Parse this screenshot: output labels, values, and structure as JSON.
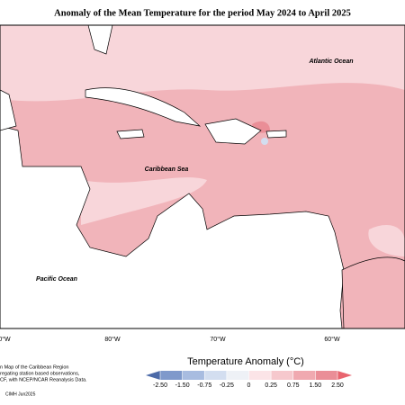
{
  "title": "Anomaly of the Mean Temperature for the period May 2024 to April 2025",
  "ocean_labels": {
    "atlantic": "Atlantic Ocean",
    "caribbean": "Caribbean Sea",
    "pacific": "Pacific Ocean"
  },
  "longitudes": [
    "0°W",
    "80°W",
    "70°W",
    "60°W"
  ],
  "legend": {
    "title": "Temperature Anomaly (°C)",
    "ticks": [
      {
        "value": -2.5,
        "label": "-2.50"
      },
      {
        "value": -1.5,
        "label": "-1.50"
      },
      {
        "value": -0.75,
        "label": "-0.75"
      },
      {
        "value": -0.25,
        "label": "-0.25"
      },
      0,
      {
        "value": 0.25,
        "label": "0.25"
      },
      {
        "value": 0.75,
        "label": "0.75"
      },
      {
        "value": 1.5,
        "label": "1.50"
      },
      {
        "value": 2.5,
        "label": "2.50"
      }
    ],
    "colors": [
      "#4c6aa8",
      "#7f99cb",
      "#a8bce0",
      "#d3def0",
      "#eef1f6",
      "#fbe4e7",
      "#f6c8cd",
      "#f0a9b0",
      "#ea8e97",
      "#e8656f"
    ]
  },
  "note": [
    "n Map of the Caribbean Region",
    "regating station based observations,",
    "CF, with NCEP/NCAR Reanalysis Data."
  ],
  "credit": "CIMH Jun2025"
}
